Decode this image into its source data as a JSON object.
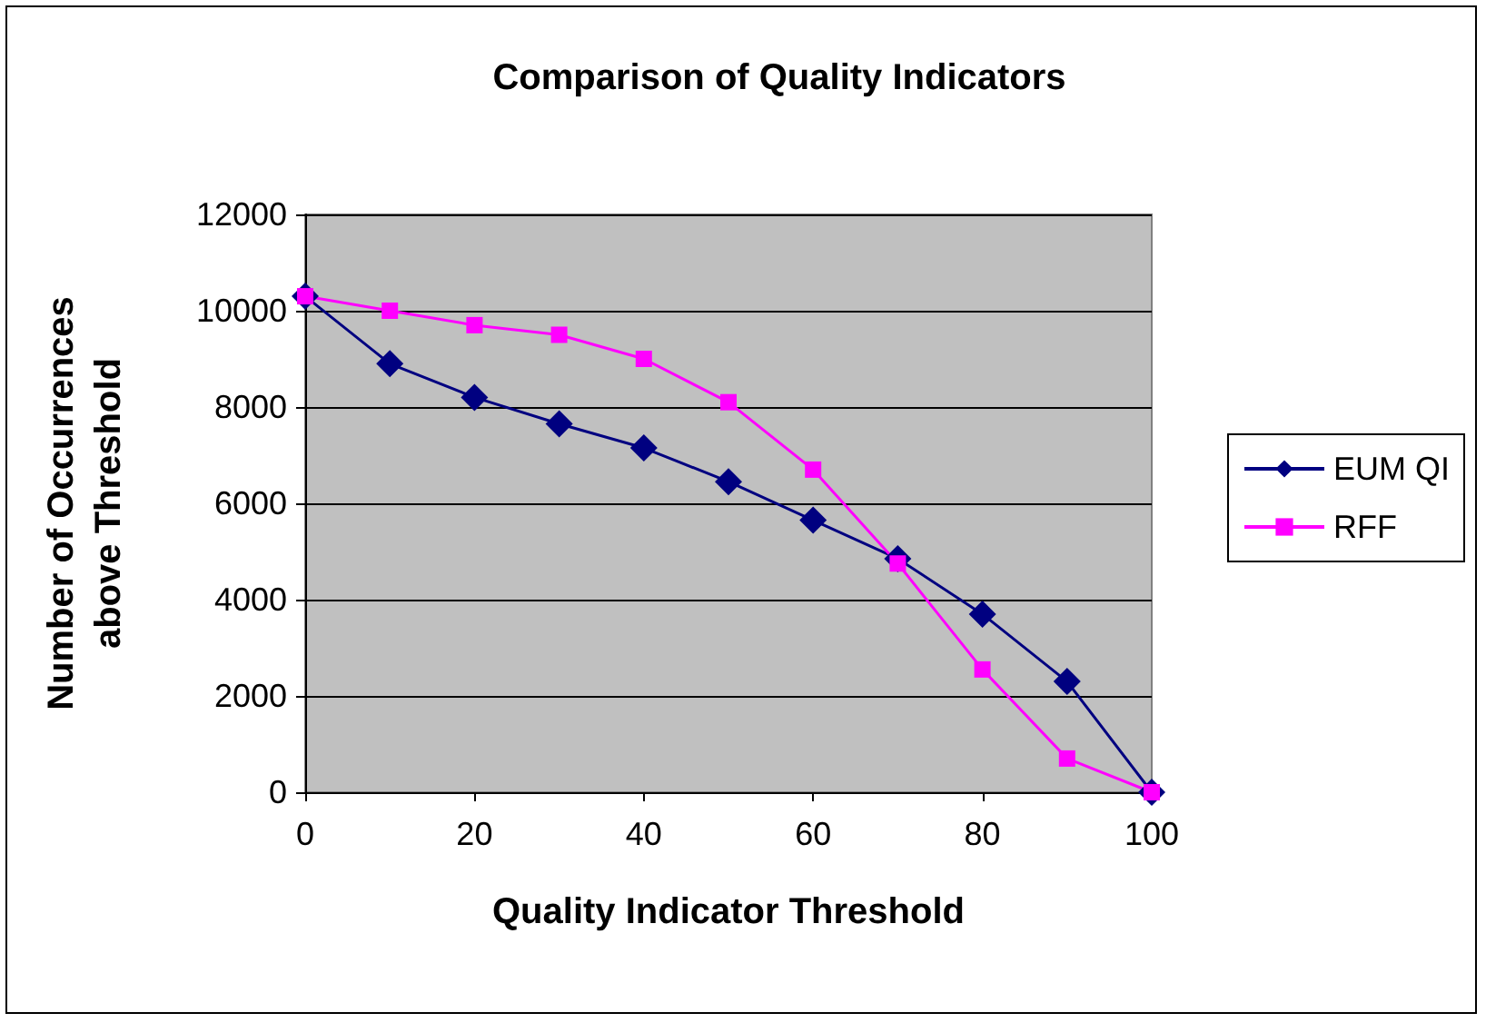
{
  "chart_data": {
    "type": "line",
    "title": "Comparison of Quality Indicators",
    "xlabel": "Quality Indicator Threshold",
    "ylabel": "Number of Occurrences\nabove Threshold",
    "x": [
      0,
      10,
      20,
      30,
      40,
      50,
      60,
      70,
      80,
      90,
      100
    ],
    "series": [
      {
        "name": "EUM QI",
        "color": "#000080",
        "marker": "diamond",
        "values": [
          10300,
          8900,
          8200,
          7650,
          7150,
          6450,
          5650,
          4850,
          3700,
          2300,
          0
        ]
      },
      {
        "name": "RFF",
        "color": "#ff00ff",
        "marker": "square",
        "values": [
          10300,
          10000,
          9700,
          9500,
          9000,
          8100,
          6700,
          4750,
          2550,
          700,
          0
        ]
      }
    ],
    "xlim": [
      0,
      100
    ],
    "xticks": [
      0,
      20,
      40,
      60,
      80,
      100
    ],
    "ylim": [
      0,
      12000
    ],
    "yticks": [
      0,
      2000,
      4000,
      6000,
      8000,
      10000,
      12000
    ],
    "grid": "y",
    "legend": "right",
    "line_style": "solid"
  }
}
